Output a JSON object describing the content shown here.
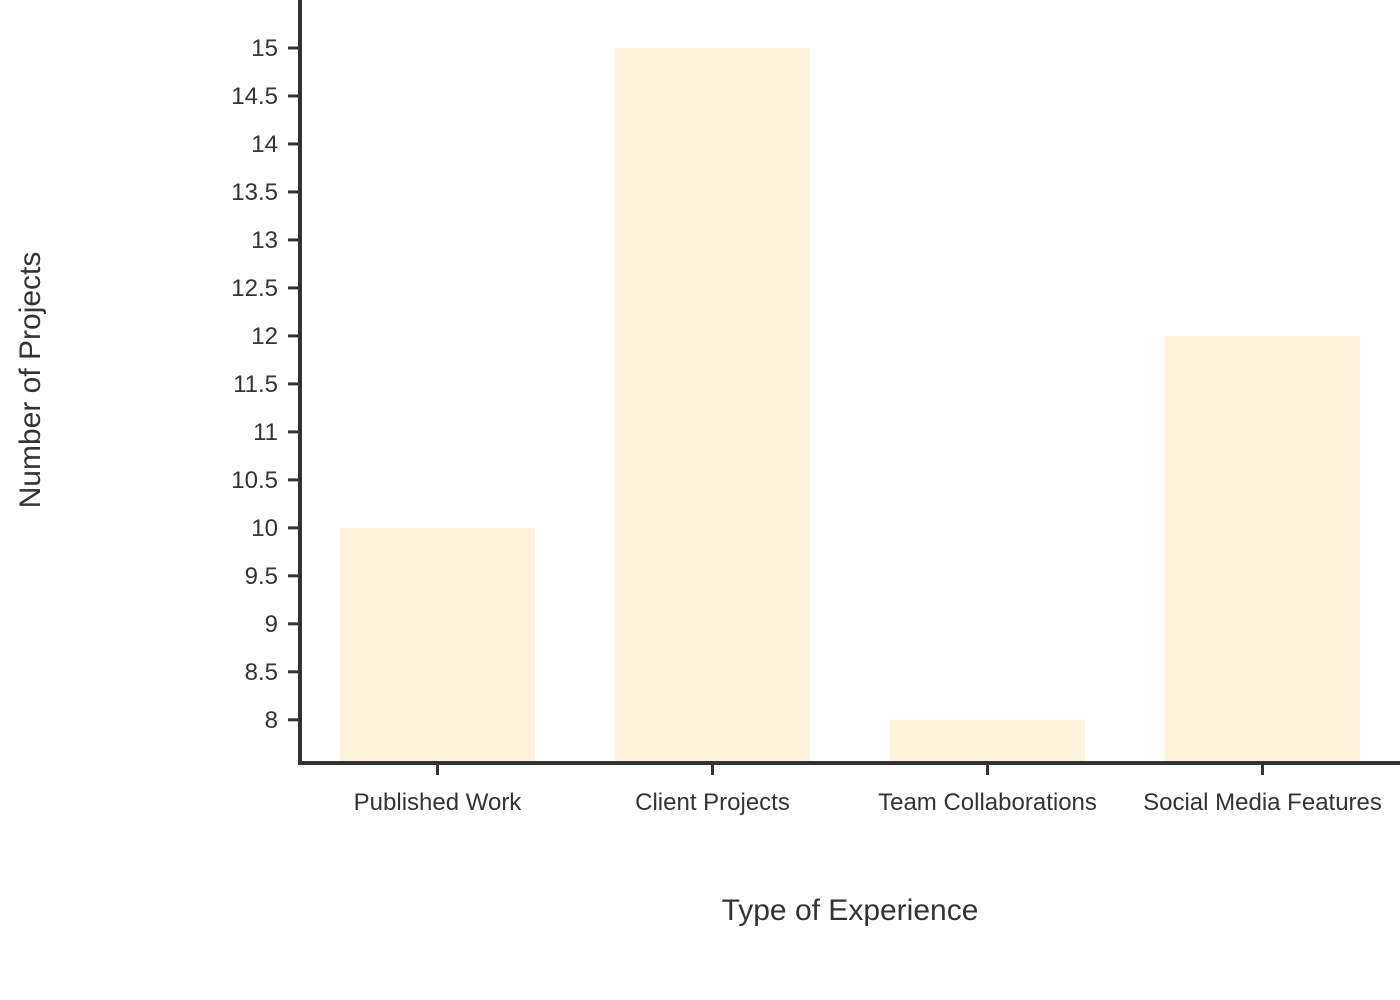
{
  "chart_data": {
    "type": "bar",
    "categories": [
      "Published Work",
      "Client Projects",
      "Team Collaborations",
      "Social Media Features"
    ],
    "values": [
      10,
      15,
      8,
      12
    ],
    "title": "",
    "xlabel": "Type of Experience",
    "ylabel": "Number of Projects",
    "ylim": [
      7.55,
      15.5
    ],
    "yticks": [
      "8",
      "8.5",
      "9",
      "9.5",
      "10",
      "10.5",
      "11",
      "11.5",
      "12",
      "12.5",
      "13",
      "13.5",
      "14",
      "14.5",
      "15"
    ],
    "grid": false,
    "legend": "none",
    "bar_color": "#fff3dc",
    "axis_color": "#333333"
  }
}
